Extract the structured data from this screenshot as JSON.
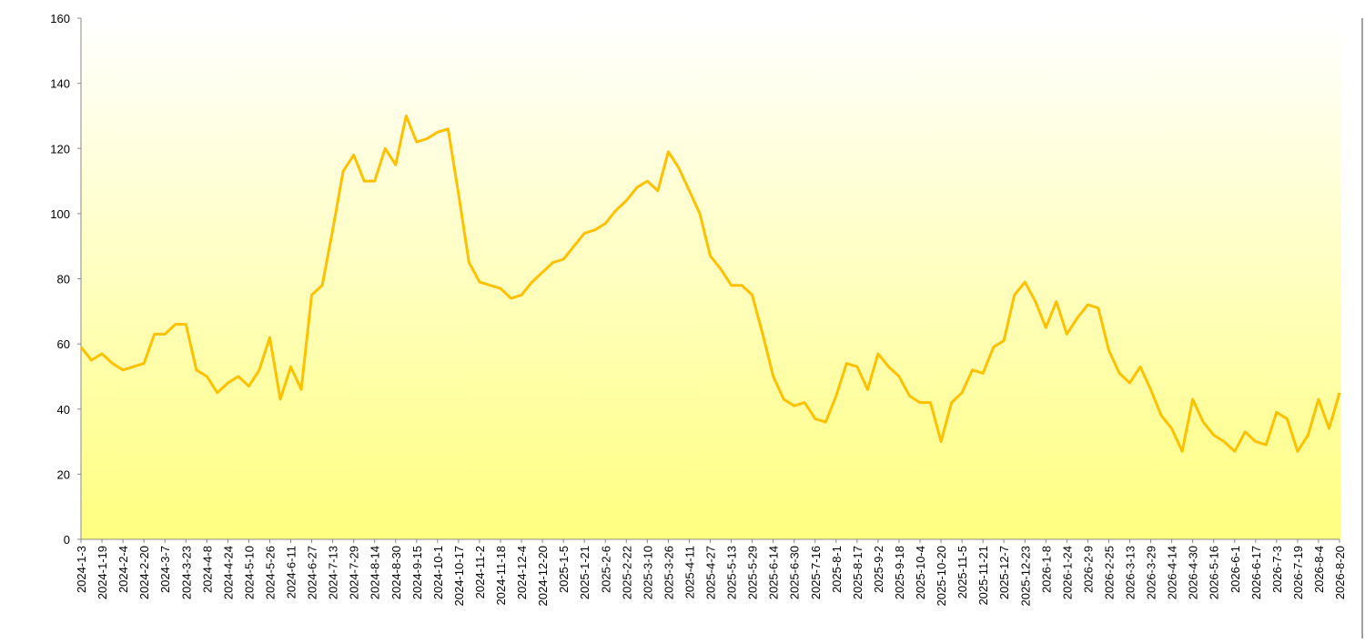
{
  "chart_data": {
    "type": "line",
    "x": [
      "2024-1-3",
      "2024-1-11",
      "2024-1-19",
      "2024-1-27",
      "2024-2-4",
      "2024-2-12",
      "2024-2-20",
      "2024-2-28",
      "2024-3-7",
      "2024-3-15",
      "2024-3-23",
      "2024-3-31",
      "2024-4-8",
      "2024-4-16",
      "2024-4-24",
      "2024-5-2",
      "2024-5-10",
      "2024-5-18",
      "2024-5-26",
      "2024-6-3",
      "2024-6-11",
      "2024-6-19",
      "2024-6-27",
      "2024-7-5",
      "2024-7-13",
      "2024-7-21",
      "2024-7-29",
      "2024-8-6",
      "2024-8-14",
      "2024-8-22",
      "2024-8-30",
      "2024-9-7",
      "2024-9-15",
      "2024-9-23",
      "2024-10-1",
      "2024-10-9",
      "2024-10-17",
      "2024-10-25",
      "2024-11-2",
      "2024-11-10",
      "2024-11-18",
      "2024-11-26",
      "2024-12-4",
      "2024-12-12",
      "2024-12-20",
      "2024-12-28",
      "2025-1-5",
      "2025-1-13",
      "2025-1-21",
      "2025-1-29",
      "2025-2-6",
      "2025-2-14",
      "2025-2-22",
      "2025-3-2",
      "2025-3-10",
      "2025-3-18",
      "2025-3-26",
      "2025-4-3",
      "2025-4-11",
      "2025-4-19",
      "2025-4-27",
      "2025-5-5",
      "2025-5-13",
      "2025-5-21",
      "2025-5-29",
      "2025-6-6",
      "2025-6-14",
      "2025-6-22",
      "2025-6-30",
      "2025-7-8",
      "2025-7-16",
      "2025-7-24",
      "2025-8-1",
      "2025-8-9",
      "2025-8-17",
      "2025-8-25",
      "2025-9-2",
      "2025-9-10",
      "2025-9-18",
      "2025-9-26",
      "2025-10-4",
      "2025-10-12",
      "2025-10-20",
      "2025-10-28",
      "2025-11-5",
      "2025-11-13",
      "2025-11-21",
      "2025-11-29",
      "2025-12-7",
      "2025-12-15",
      "2025-12-23",
      "2025-12-31",
      "2026-1-8",
      "2026-1-16",
      "2026-1-24",
      "2026-2-1",
      "2026-2-9",
      "2026-2-17",
      "2026-2-25",
      "2026-3-5",
      "2026-3-13",
      "2026-3-21",
      "2026-3-29",
      "2026-4-6",
      "2026-4-14",
      "2026-4-22",
      "2026-4-30",
      "2026-5-8",
      "2026-5-16",
      "2026-5-24",
      "2026-6-1",
      "2026-6-9",
      "2026-6-17",
      "2026-6-25",
      "2026-7-3",
      "2026-7-11",
      "2026-7-19",
      "2026-7-27",
      "2026-8-4",
      "2026-8-12",
      "2026-8-20"
    ],
    "series": [
      {
        "color": "#ffc000",
        "values": [
          59,
          55,
          57,
          54,
          52,
          53,
          54,
          63,
          63,
          66,
          66,
          52,
          50,
          45,
          48,
          50,
          47,
          52,
          62,
          43,
          53,
          46,
          75,
          78,
          95,
          113,
          118,
          110,
          110,
          120,
          115,
          130,
          122,
          123,
          125,
          126,
          106,
          85,
          79,
          78,
          77,
          74,
          75,
          79,
          82,
          85,
          86,
          90,
          94,
          95,
          97,
          101,
          104,
          108,
          110,
          107,
          119,
          114,
          107,
          100,
          87,
          83,
          78,
          78,
          75,
          63,
          50,
          43,
          41,
          42,
          37,
          36,
          44,
          54,
          53,
          46,
          57,
          53,
          50,
          44,
          42,
          42,
          30,
          42,
          45,
          52,
          51,
          59,
          61,
          75,
          79,
          73,
          65,
          73,
          63,
          68,
          72,
          71,
          58,
          51,
          48,
          53,
          46,
          38,
          34,
          27,
          43,
          36,
          32,
          30,
          27,
          33,
          30,
          29,
          39,
          37,
          27,
          32,
          43,
          34,
          45
        ]
      }
    ],
    "xlim": [
      "2024-1-3",
      "2026-8-20"
    ],
    "xticks": [
      "2024-1-3",
      "2024-1-19",
      "2024-2-4",
      "2024-2-20",
      "2024-3-7",
      "2024-3-23",
      "2024-4-8",
      "2024-4-24",
      "2024-5-10",
      "2024-5-26",
      "2024-6-11",
      "2024-6-27",
      "2024-7-13",
      "2024-7-29",
      "2024-8-14",
      "2024-8-30",
      "2024-9-15",
      "2024-10-1",
      "2024-10-17",
      "2024-11-2",
      "2024-11-18",
      "2024-12-4",
      "2024-12-20",
      "2025-1-5",
      "2025-1-21",
      "2025-2-6",
      "2025-2-22",
      "2025-3-10",
      "2025-3-26",
      "2025-4-11",
      "2025-4-27",
      "2025-5-13",
      "2025-5-29",
      "2025-6-14",
      "2025-6-30",
      "2025-7-16",
      "2025-8-1",
      "2025-8-17",
      "2025-9-2",
      "2025-9-18",
      "2025-10-4",
      "2025-10-20",
      "2025-11-5",
      "2025-11-21",
      "2025-12-7",
      "2025-12-23",
      "2026-1-8",
      "2026-1-24",
      "2026-2-9",
      "2026-2-25",
      "2026-3-13",
      "2026-3-29",
      "2026-4-14",
      "2026-4-30",
      "2026-5-16",
      "2026-6-1",
      "2026-6-17",
      "2026-7-3",
      "2026-7-19",
      "2026-8-4",
      "2026-8-20"
    ],
    "ylim": [
      0,
      160
    ],
    "yticks": [
      0,
      20,
      40,
      60,
      80,
      100,
      120,
      140,
      160
    ],
    "grid": false
  }
}
